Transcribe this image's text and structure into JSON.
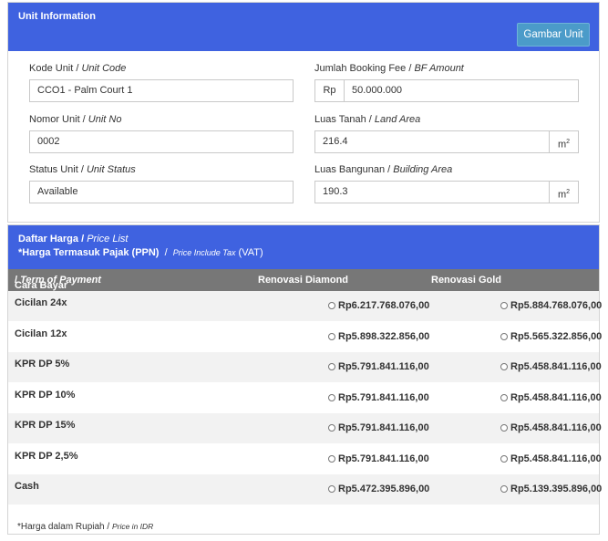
{
  "unit_info": {
    "title": "Unit Information",
    "gambar_button": "Gambar Unit",
    "kode_unit": {
      "label": "Kode Unit",
      "label_en": "Unit Code",
      "value": "CCO1 - Palm Court 1"
    },
    "nomor_unit": {
      "label": "Nomor Unit",
      "label_en": "Unit No",
      "value": "0002"
    },
    "status_unit": {
      "label": "Status Unit",
      "label_en": "Unit Status",
      "value": "Available"
    },
    "booking_fee": {
      "label": "Jumlah Booking Fee",
      "label_en": "BF Amount",
      "prefix": "Rp",
      "value": "50.000.000"
    },
    "land_area": {
      "label": "Luas Tanah",
      "label_en": "Land Area",
      "value": "216.4",
      "unit": "m",
      "unit_sup": "2"
    },
    "building_area": {
      "label": "Luas Bangunan",
      "label_en": "Building Area",
      "value": "190.3",
      "unit": "m",
      "unit_sup": "2"
    }
  },
  "price_list": {
    "title": "Daftar Harga",
    "title_en": "Price List",
    "tax_note": "*Harga Termasuk Pajak (PPN)",
    "tax_note_en": "Price Include Tax",
    "tax_note_vat": "(VAT)",
    "columns": {
      "payment": "Cara Bayar",
      "payment_en": "Term of Payment",
      "diamond": "Renovasi Diamond",
      "gold": "Renovasi Gold"
    },
    "rows": [
      {
        "name": "Cicilan 24x",
        "diamond": "Rp6.217.768.076,00",
        "gold": "Rp5.884.768.076,00"
      },
      {
        "name": "Cicilan 12x",
        "diamond": "Rp5.898.322.856,00",
        "gold": "Rp5.565.322.856,00"
      },
      {
        "name": "KPR DP 5%",
        "diamond": "Rp5.791.841.116,00",
        "gold": "Rp5.458.841.116,00"
      },
      {
        "name": "KPR DP 10%",
        "diamond": "Rp5.791.841.116,00",
        "gold": "Rp5.458.841.116,00"
      },
      {
        "name": "KPR DP 15%",
        "diamond": "Rp5.791.841.116,00",
        "gold": "Rp5.458.841.116,00"
      },
      {
        "name": "KPR DP 2,5%",
        "diamond": "Rp5.791.841.116,00",
        "gold": "Rp5.458.841.116,00"
      },
      {
        "name": "Cash",
        "diamond": "Rp5.472.395.896,00",
        "gold": "Rp5.139.395.896,00"
      }
    ],
    "footnote": "*Harga dalam Rupiah /",
    "footnote_en": "Price in IDR"
  },
  "colors": {
    "header_blue": "#3f62e0",
    "button_blue": "#4b9bc9",
    "table_head_gray": "#777777"
  }
}
